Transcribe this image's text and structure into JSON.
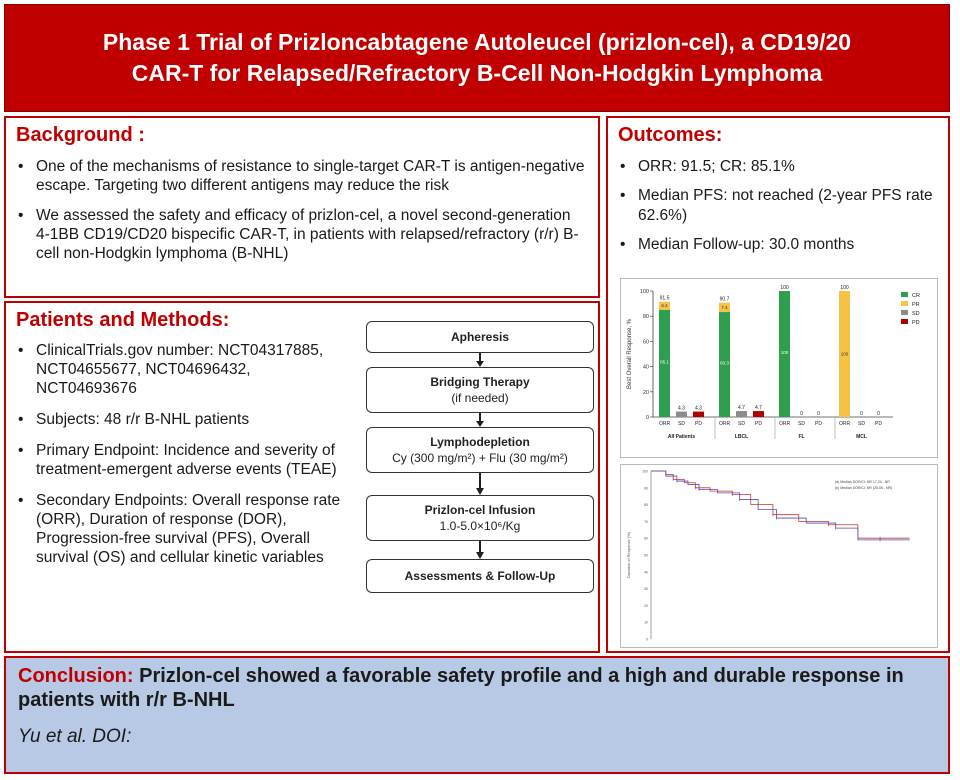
{
  "title": {
    "line1": "Phase 1 Trial of Prizloncabtagene Autoleucel (prizlon-cel), a CD19/20",
    "line2": "CAR-T for Relapsed/Refractory B-Cell Non-Hodgkin Lymphoma"
  },
  "background": {
    "heading": "Background :",
    "items": [
      "One of the mechanisms of resistance to single-target CAR-T is antigen-negative escape. Targeting two different antigens may reduce the risk",
      "We assessed the safety and efficacy of prizlon-cel, a novel second-generation 4-1BB CD19/CD20 bispecific CAR-T, in patients with relapsed/refractory (r/r) B-cell non-Hodgkin lymphoma (B-NHL)"
    ]
  },
  "methods": {
    "heading": "Patients and Methods:",
    "items": [
      "ClinicalTrials.gov number: NCT04317885, NCT04655677, NCT04696432, NCT04693676",
      "Subjects: 48 r/r B-NHL patients",
      "Primary Endpoint: Incidence and severity of treatment-emergent adverse events (TEAE)",
      "Secondary Endpoints: Overall response rate (ORR), Duration of response (DOR), Progression-free survival (PFS), Overall survival (OS) and cellular kinetic variables"
    ],
    "flow": [
      {
        "title": "Apheresis",
        "sub": ""
      },
      {
        "title": "Bridging Therapy",
        "sub": "(if needed)"
      },
      {
        "title": "Lymphodepletion",
        "sub": "Cy (300 mg/m²) + Flu (30 mg/m²)"
      },
      {
        "title": "Prizlon-cel Infusion",
        "sub": "1.0-5.0×10⁶/Kg"
      },
      {
        "title": "Assessments & Follow-Up",
        "sub": ""
      }
    ]
  },
  "outcomes": {
    "heading": "Outcomes:",
    "items": [
      "ORR: 91.5; CR: 85.1%",
      "Median PFS: not reached (2-year PFS rate 62.6%)",
      "Median Follow-up: 30.0 months"
    ]
  },
  "conclusion": {
    "label": "Conclusion:",
    "text": "Prizlon-cel showed a favorable safety profile and a high and durable response in patients with r/r B-NHL",
    "citation": "Yu et al. DOI:"
  },
  "chart_data": {
    "type": "bar",
    "ylabel": "Best Overall Response, %",
    "ylim": [
      0,
      100
    ],
    "yticks": [
      0,
      20,
      40,
      60,
      80,
      100
    ],
    "legend": [
      {
        "name": "CR",
        "color": "#2e9e4f"
      },
      {
        "name": "PR",
        "color": "#f6c344"
      },
      {
        "name": "SD",
        "color": "#8c8c8c"
      },
      {
        "name": "PD",
        "color": "#b00000"
      }
    ],
    "legend_position": "top-right",
    "colors": {
      "CR": "#2e9e4f",
      "PR": "#f6c344",
      "SD": "#8c8c8c",
      "PD": "#b00000"
    },
    "groups": [
      {
        "name": "All Patients",
        "bars": [
          {
            "cat": "ORR",
            "stack": [
              {
                "k": "CR",
                "v": 85.1
              },
              {
                "k": "PR",
                "v": 6.4
              }
            ],
            "top": "91.5",
            "cr_label": "85.1",
            "pr_label": "6.4"
          },
          {
            "cat": "SD",
            "stack": [
              {
                "k": "SD",
                "v": 4.3
              }
            ],
            "top": "4.3"
          },
          {
            "cat": "PD",
            "stack": [
              {
                "k": "PD",
                "v": 4.3
              }
            ],
            "top": "4.3"
          }
        ]
      },
      {
        "name": "LBCL",
        "bars": [
          {
            "cat": "ORR",
            "stack": [
              {
                "k": "CR",
                "v": 83.3
              },
              {
                "k": "PR",
                "v": 7.4
              }
            ],
            "top": "90.7",
            "cr_label": "83.3",
            "pr_label": "7.4"
          },
          {
            "cat": "SD",
            "stack": [
              {
                "k": "SD",
                "v": 4.7
              }
            ],
            "top": "4.7"
          },
          {
            "cat": "PD",
            "stack": [
              {
                "k": "PD",
                "v": 4.7
              }
            ],
            "top": "4.7"
          }
        ]
      },
      {
        "name": "FL",
        "bars": [
          {
            "cat": "ORR",
            "stack": [
              {
                "k": "CR",
                "v": 100
              }
            ],
            "top": "100",
            "cr_label": "100"
          },
          {
            "cat": "SD",
            "stack": [],
            "top": "0"
          },
          {
            "cat": "PD",
            "stack": [],
            "top": "0"
          }
        ]
      },
      {
        "name": "MCL",
        "bars": [
          {
            "cat": "ORR",
            "stack": [
              {
                "k": "PR",
                "v": 100
              }
            ],
            "top": "100",
            "pr_label": "100"
          },
          {
            "cat": "SD",
            "stack": [],
            "top": "0"
          },
          {
            "cat": "PD",
            "stack": [],
            "top": "0"
          }
        ]
      }
    ]
  },
  "km_chart": {
    "type": "line",
    "ylabel": "Duration of Response (%)",
    "ylim": [
      0,
      100
    ],
    "yticks": [
      0,
      10,
      20,
      30,
      40,
      50,
      60,
      70,
      80,
      90,
      100
    ],
    "legend_lines": [
      "(a) Median DOR/CI: NR 17.24 - NR",
      "(b) Median DOR/CI: NR (25.06 - NR)"
    ],
    "series": [
      {
        "color": "#c0392b",
        "points": [
          [
            0,
            100
          ],
          [
            4,
            98
          ],
          [
            6,
            95
          ],
          [
            9,
            93
          ],
          [
            12,
            90
          ],
          [
            16,
            88
          ],
          [
            22,
            86
          ],
          [
            27,
            80
          ],
          [
            33,
            74
          ],
          [
            40,
            70
          ],
          [
            48,
            68
          ],
          [
            56,
            60
          ],
          [
            62,
            60
          ],
          [
            70,
            60
          ]
        ]
      },
      {
        "color": "#5b4bb5",
        "points": [
          [
            0,
            100
          ],
          [
            4,
            97
          ],
          [
            7,
            94
          ],
          [
            10,
            92
          ],
          [
            13,
            89
          ],
          [
            18,
            87
          ],
          [
            24,
            83
          ],
          [
            29,
            77
          ],
          [
            34,
            72
          ],
          [
            42,
            69
          ],
          [
            50,
            66
          ],
          [
            56,
            59
          ],
          [
            62,
            59
          ],
          [
            70,
            59
          ]
        ]
      }
    ]
  }
}
